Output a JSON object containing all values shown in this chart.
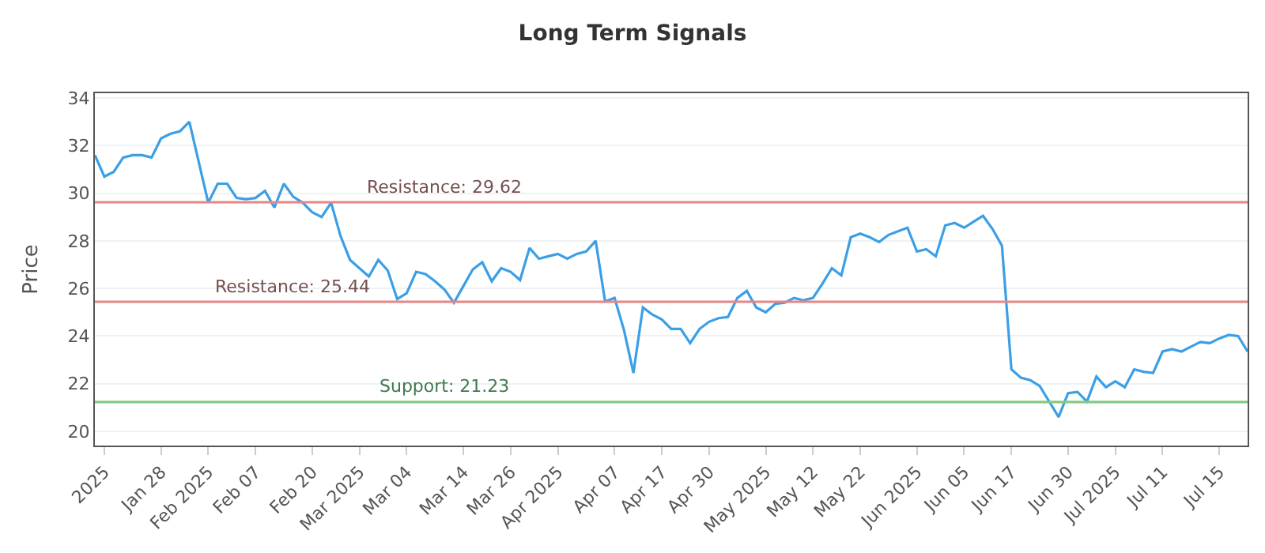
{
  "chart_data": {
    "type": "line",
    "title": "Long Term Signals",
    "ylabel": "Price",
    "categories": [
      null,
      "2025",
      null,
      null,
      null,
      null,
      null,
      "Jan 28",
      null,
      null,
      null,
      null,
      "Feb 2025",
      null,
      null,
      null,
      null,
      "Feb 07",
      null,
      null,
      null,
      null,
      null,
      "Feb 20",
      null,
      null,
      null,
      null,
      "Mar 2025",
      null,
      null,
      null,
      null,
      "Mar 04",
      null,
      null,
      null,
      null,
      null,
      "Mar 14",
      null,
      null,
      null,
      null,
      "Mar 26",
      null,
      null,
      null,
      null,
      "Apr 2025",
      null,
      null,
      null,
      null,
      null,
      "Apr 07",
      null,
      null,
      null,
      null,
      "Apr 17",
      null,
      null,
      null,
      null,
      "Apr 30",
      null,
      null,
      null,
      null,
      null,
      "May 2025",
      null,
      null,
      null,
      null,
      "May 12",
      null,
      null,
      null,
      null,
      "May 22",
      null,
      null,
      null,
      null,
      null,
      "Jun 2025",
      null,
      null,
      null,
      null,
      "Jun 05",
      null,
      null,
      null,
      null,
      "Jun 17",
      null,
      null,
      null,
      null,
      null,
      "Jun 30",
      null,
      null,
      null,
      null,
      "Jul 2025",
      null,
      null,
      null,
      null,
      "Jul 11",
      null,
      null,
      null,
      null,
      null,
      "Jul 15",
      null,
      null,
      null
    ],
    "series": [
      {
        "color": "#3a9fe6",
        "values": [
          31.6,
          30.7,
          30.9,
          31.5,
          31.6,
          31.6,
          31.5,
          32.3,
          32.5,
          32.6,
          33.0,
          31.3,
          29.6,
          30.4,
          30.4,
          29.8,
          29.75,
          29.8,
          30.1,
          29.4,
          30.4,
          29.85,
          29.6,
          29.2,
          29.0,
          29.6,
          28.2,
          27.2,
          26.85,
          26.5,
          27.2,
          26.75,
          25.55,
          25.8,
          26.7,
          26.6,
          26.3,
          25.95,
          25.4,
          26.1,
          26.8,
          27.1,
          26.3,
          26.85,
          26.7,
          26.35,
          27.7,
          27.25,
          27.35,
          27.45,
          27.25,
          27.45,
          27.55,
          28.0,
          25.45,
          25.6,
          24.25,
          22.45,
          25.2,
          24.9,
          24.7,
          24.3,
          24.3,
          23.7,
          24.3,
          24.6,
          24.75,
          24.8,
          25.6,
          25.9,
          25.2,
          25.0,
          25.35,
          25.4,
          25.6,
          25.5,
          25.6,
          26.2,
          26.85,
          26.55,
          28.15,
          28.3,
          28.15,
          27.95,
          28.25,
          28.4,
          28.55,
          27.55,
          27.65,
          27.35,
          28.65,
          28.75,
          28.55,
          28.8,
          29.05,
          28.5,
          27.8,
          22.6,
          22.25,
          22.15,
          21.9,
          21.25,
          20.6,
          21.6,
          21.65,
          21.25,
          22.3,
          21.85,
          22.1,
          21.85,
          22.6,
          22.5,
          22.45,
          23.35,
          23.45,
          23.35,
          23.55,
          23.75,
          23.7,
          23.9,
          24.05,
          24.0,
          23.35
        ]
      }
    ],
    "ylim": [
      19.4,
      34.2
    ],
    "yticks": [
      20,
      22,
      24,
      26,
      28,
      30,
      32,
      34
    ],
    "grid": "y",
    "marker": "none",
    "line_style": "solid",
    "ref_lines": [
      {
        "axis": "y",
        "value": 29.62,
        "label": "Resistance: 29.62",
        "color": "#e88585"
      },
      {
        "axis": "y",
        "value": 25.44,
        "label": "Resistance: 25.44",
        "color": "#e88585"
      },
      {
        "axis": "y",
        "value": 21.23,
        "label": "Support: 21.23",
        "color": "#85c985"
      }
    ]
  }
}
